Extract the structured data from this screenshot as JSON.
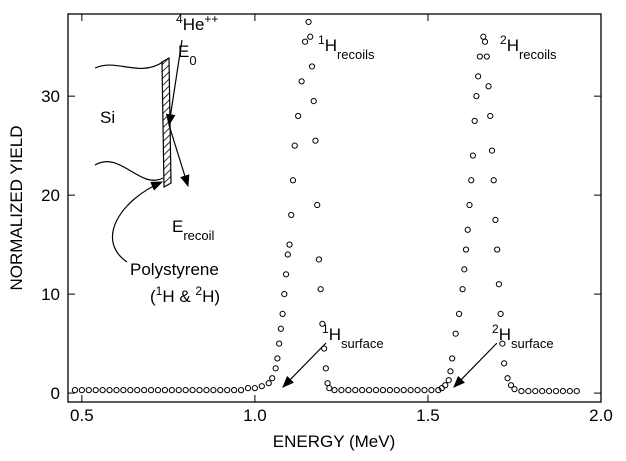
{
  "chart_data": {
    "type": "scatter",
    "xlabel": "ENERGY (MeV)",
    "ylabel": "NORMALIZED YIELD",
    "xlim": [
      0.46,
      2.0
    ],
    "ylim": [
      -0.9,
      38.3
    ],
    "xticks": [
      0.5,
      {
        "value": 1,
        "label": "1.0"
      },
      1.5,
      {
        "value": 2,
        "label": "2.0"
      }
    ],
    "yticks": [
      0,
      10,
      20,
      30
    ],
    "marker_color": "#000000",
    "x": [
      0.48,
      0.5,
      0.52,
      0.54,
      0.56,
      0.58,
      0.6,
      0.62,
      0.64,
      0.66,
      0.68,
      0.7,
      0.72,
      0.74,
      0.76,
      0.78,
      0.8,
      0.82,
      0.84,
      0.86,
      0.88,
      0.9,
      0.92,
      0.94,
      0.96,
      0.98,
      1.0,
      1.02,
      1.04,
      1.05,
      1.06,
      1.065,
      1.07,
      1.075,
      1.08,
      1.085,
      1.09,
      1.095,
      1.1,
      1.105,
      1.11,
      1.115,
      1.125,
      1.135,
      1.145,
      1.155,
      1.16,
      1.165,
      1.17,
      1.175,
      1.18,
      1.185,
      1.19,
      1.195,
      1.2,
      1.205,
      1.21,
      1.215,
      1.23,
      1.25,
      1.27,
      1.29,
      1.31,
      1.33,
      1.35,
      1.37,
      1.39,
      1.41,
      1.43,
      1.45,
      1.47,
      1.49,
      1.51,
      1.53,
      1.54,
      1.55,
      1.56,
      1.565,
      1.57,
      1.58,
      1.59,
      1.6,
      1.605,
      1.61,
      1.615,
      1.62,
      1.625,
      1.63,
      1.635,
      1.64,
      1.645,
      1.65,
      1.66,
      1.665,
      1.67,
      1.675,
      1.68,
      1.685,
      1.69,
      1.695,
      1.7,
      1.705,
      1.71,
      1.715,
      1.72,
      1.73,
      1.74,
      1.75,
      1.77,
      1.79,
      1.81,
      1.83,
      1.85,
      1.87,
      1.89,
      1.91,
      1.93
    ],
    "values": [
      0.3,
      0.3,
      0.3,
      0.3,
      0.3,
      0.3,
      0.3,
      0.3,
      0.3,
      0.3,
      0.3,
      0.3,
      0.3,
      0.3,
      0.3,
      0.3,
      0.3,
      0.3,
      0.3,
      0.3,
      0.3,
      0.3,
      0.3,
      0.3,
      0.3,
      0.5,
      0.5,
      0.7,
      1.0,
      1.5,
      2.5,
      3.5,
      5,
      6.5,
      8,
      10,
      12,
      14,
      15,
      18,
      21.5,
      25,
      28,
      31.5,
      35.5,
      37.5,
      36,
      33,
      29.5,
      25.5,
      19,
      13.5,
      10.5,
      7,
      4.5,
      2.5,
      1,
      0.5,
      0.3,
      0.3,
      0.3,
      0.3,
      0.3,
      0.3,
      0.3,
      0.3,
      0.3,
      0.3,
      0.3,
      0.3,
      0.3,
      0.3,
      0.3,
      0.3,
      0.5,
      0.8,
      1.3,
      2.2,
      3.5,
      6,
      8,
      10.5,
      12.5,
      14.5,
      16.5,
      19,
      21.5,
      24,
      27.5,
      30,
      32,
      34,
      36,
      35.5,
      34,
      31,
      28,
      24.5,
      21.5,
      17.5,
      14.5,
      11,
      8,
      5,
      3,
      1.5,
      0.8,
      0.4,
      0.2,
      0.2,
      0.2,
      0.2,
      0.2,
      0.2,
      0.2,
      0.2,
      0.2
    ],
    "annotations": [
      {
        "parts": [
          {
            "text": "4",
            "style": "sup"
          },
          {
            "text": "He"
          },
          {
            "text": "++",
            "style": "sup"
          }
        ]
      },
      {
        "parts": [
          {
            "text": "E"
          },
          {
            "text": "0",
            "style": "sub"
          }
        ]
      },
      {
        "parts": [
          {
            "text": "Si"
          }
        ]
      },
      {
        "parts": [
          {
            "text": "E"
          },
          {
            "text": "recoil",
            "style": "sub"
          }
        ]
      },
      {
        "parts": [
          {
            "text": "Polystyrene"
          }
        ]
      },
      {
        "parts": [
          {
            "text": "("
          },
          {
            "text": "1",
            "style": "sup"
          },
          {
            "text": "H & "
          },
          {
            "text": "2",
            "style": "sup"
          },
          {
            "text": "H)"
          }
        ]
      },
      {
        "parts": [
          {
            "text": "1",
            "style": "sup"
          },
          {
            "text": "H"
          },
          {
            "text": "recoils",
            "style": "sub"
          }
        ]
      },
      {
        "parts": [
          {
            "text": "2",
            "style": "sup"
          },
          {
            "text": "H"
          },
          {
            "text": "recoils",
            "style": "sub"
          }
        ]
      },
      {
        "parts": [
          {
            "text": "1",
            "style": "sup"
          },
          {
            "text": "H"
          },
          {
            "text": "surface",
            "style": "sub"
          }
        ]
      },
      {
        "parts": [
          {
            "text": "2",
            "style": "sup"
          },
          {
            "text": "H"
          },
          {
            "text": "surface",
            "style": "sub"
          }
        ]
      }
    ]
  }
}
